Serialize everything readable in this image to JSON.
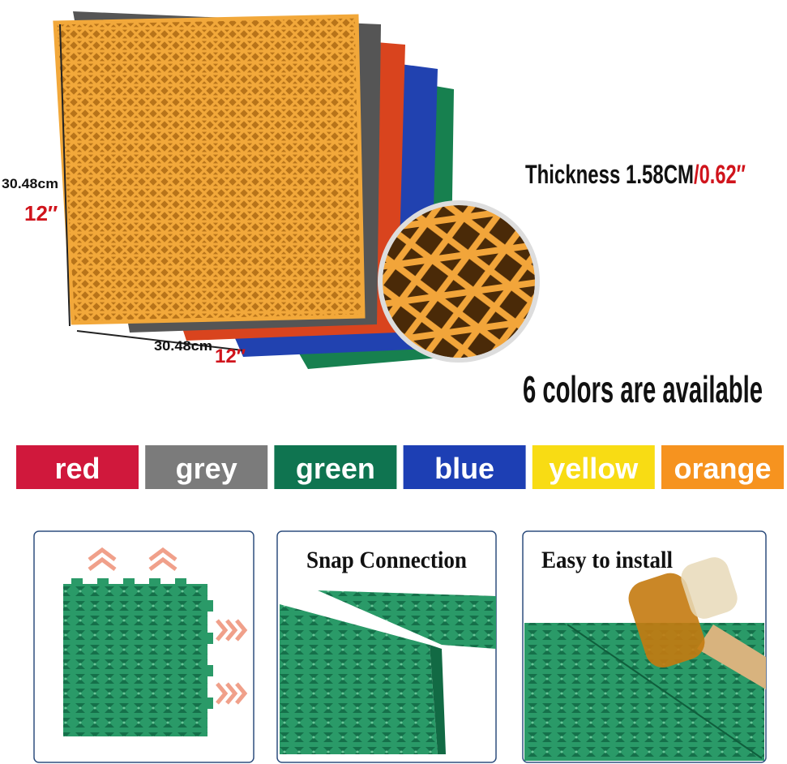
{
  "dimensions": {
    "height_cm": "30.48cm",
    "height_in": "12″",
    "width_cm": "30.48cm",
    "width_in": "12″"
  },
  "thickness": {
    "label": "Thickness 1.58CM",
    "inch": "/0.62″"
  },
  "headline": "6 colors are available",
  "colors": [
    {
      "name": "red",
      "color": "#d0183c"
    },
    {
      "name": "grey",
      "color": "#7b7b7b"
    },
    {
      "name": "green",
      "color": "#0f7450"
    },
    {
      "name": "blue",
      "color": "#1d3fb4"
    },
    {
      "name": "yellow",
      "color": "#f8dc14"
    },
    {
      "name": "orange",
      "color": "#f6931f"
    }
  ],
  "panels": [
    {
      "title": "Snap Connection"
    },
    {
      "title": "Easy to install"
    }
  ]
}
